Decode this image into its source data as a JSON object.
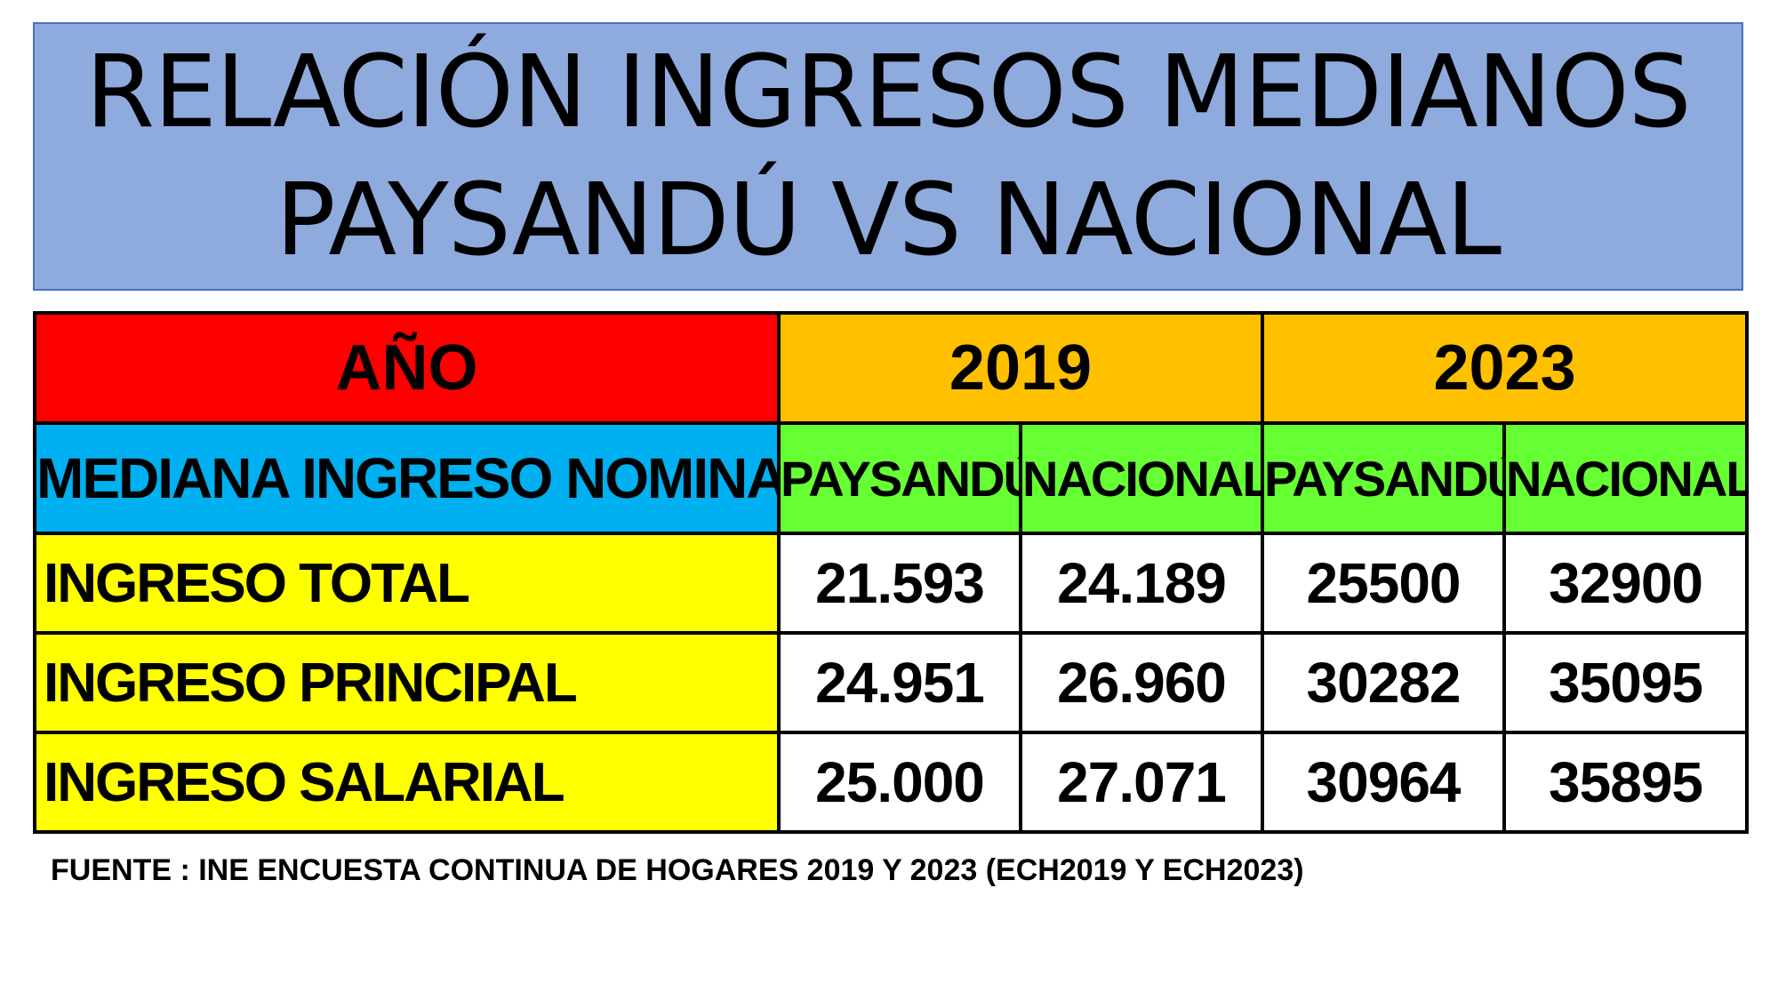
{
  "title": {
    "line1": "RELACIÓN INGRESOS MEDIANOS",
    "line2": "PAYSANDÚ VS NACIONAL"
  },
  "table": {
    "year_label": "AÑO",
    "years": [
      "2019",
      "2023"
    ],
    "subheader_label": "MEDIANA INGRESO NOMINAL",
    "subheaders": [
      "PAYSANDÚ",
      "NACIONAL",
      "PAYSANDÚ",
      "NACIONAL"
    ],
    "rows": [
      {
        "label": "INGRESO TOTAL",
        "values": [
          "21.593",
          "24.189",
          "25500",
          "32900"
        ]
      },
      {
        "label": "INGRESO PRINCIPAL",
        "values": [
          "24.951",
          "26.960",
          "30282",
          "35095"
        ]
      },
      {
        "label": "INGRESO SALARIAL",
        "values": [
          "25.000",
          "27.071",
          "30964",
          "35895"
        ]
      }
    ]
  },
  "source": "FUENTE : INE ENCUESTA CONTINUA DE HOGARES 2019 Y 2023 (ECH2019 Y ECH2023)",
  "colors": {
    "title_background": "#8faadc",
    "year_label_background": "#ff0000",
    "year_background": "#ffc000",
    "subheader_label_background": "#00b0f0",
    "subheader_background": "#66ff33",
    "row_label_background": "#ffff00",
    "value_background": "#ffffff"
  }
}
